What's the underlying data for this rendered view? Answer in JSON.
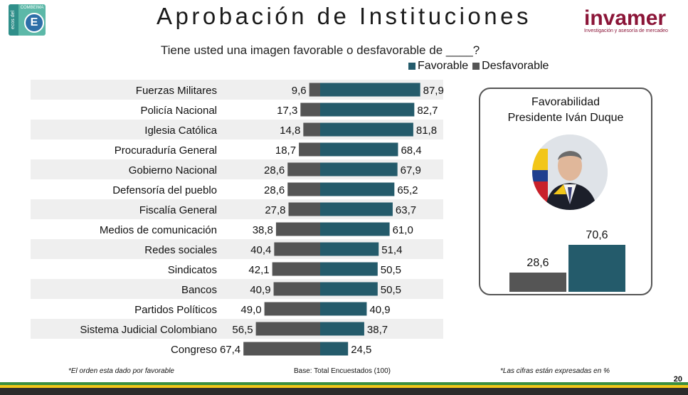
{
  "header": {
    "title": "Aprobación de Instituciones",
    "subtitle": "Tiene usted una imagen favorable o desfavorable de ____?",
    "logo_left": {
      "top_text": "COMBEIMA",
      "side_text": "ecos del",
      "letter": "E"
    },
    "brand": {
      "name": "invamer",
      "tagline": "Investigación y asesoría de mercadeo"
    }
  },
  "legend": [
    {
      "label": "Favorable",
      "color": "#245b6b"
    },
    {
      "label": "Desfavorable",
      "color": "#555555"
    }
  ],
  "chart_data": [
    {
      "type": "bar",
      "orientation": "diverging-horizontal",
      "categories": [
        "Fuerzas Militares",
        "Policía Nacional",
        "Iglesia Católica",
        "Procuraduría General",
        "Gobierno Nacional",
        "Defensoría del pueblo",
        "Fiscalía General",
        "Medios de comunicación",
        "Redes sociales",
        "Sindicatos",
        "Bancos",
        "Partidos Políticos",
        "Sistema Judicial Colombiano",
        "Congreso"
      ],
      "series": [
        {
          "name": "Favorable",
          "color": "#245b6b",
          "values": [
            87.9,
            82.7,
            81.8,
            68.4,
            67.9,
            65.2,
            63.7,
            61.0,
            51.4,
            50.5,
            50.5,
            40.9,
            38.7,
            24.5
          ],
          "labels": [
            "87,9",
            "82,7",
            "81,8",
            "68,4",
            "67,9",
            "65,2",
            "63,7",
            "61,0",
            "51,4",
            "50,5",
            "50,5",
            "40,9",
            "38,7",
            "24,5"
          ]
        },
        {
          "name": "Desfavorable",
          "color": "#555555",
          "values": [
            9.6,
            17.3,
            14.8,
            18.7,
            28.6,
            28.6,
            27.8,
            38.8,
            40.4,
            42.1,
            40.9,
            49.0,
            56.5,
            67.4
          ],
          "labels": [
            "9,6",
            "17,3",
            "14,8",
            "18,7",
            "28,6",
            "28,6",
            "27,8",
            "38,8",
            "40,4",
            "42,1",
            "40,9",
            "49,0",
            "56,5",
            "67,4"
          ]
        }
      ],
      "row_shading": "alternating"
    },
    {
      "type": "bar",
      "title": "Favorabilidad",
      "subtitle": "Presidente Iván Duque",
      "categories": [
        "Desfavorable",
        "Favorable"
      ],
      "values": [
        28.6,
        70.6
      ],
      "labels": [
        "28,6",
        "70,6"
      ],
      "colors": [
        "#555555",
        "#245b6b"
      ]
    }
  ],
  "footer": {
    "note_left": "*El orden esta dado por favorable",
    "base": "Base: Total Encuestados (100)",
    "note_right": "*Las cifras están expresadas en %",
    "page": "20"
  },
  "stripe_colors": [
    "#3a8f3f",
    "#f2c619",
    "#2b2b2b"
  ]
}
